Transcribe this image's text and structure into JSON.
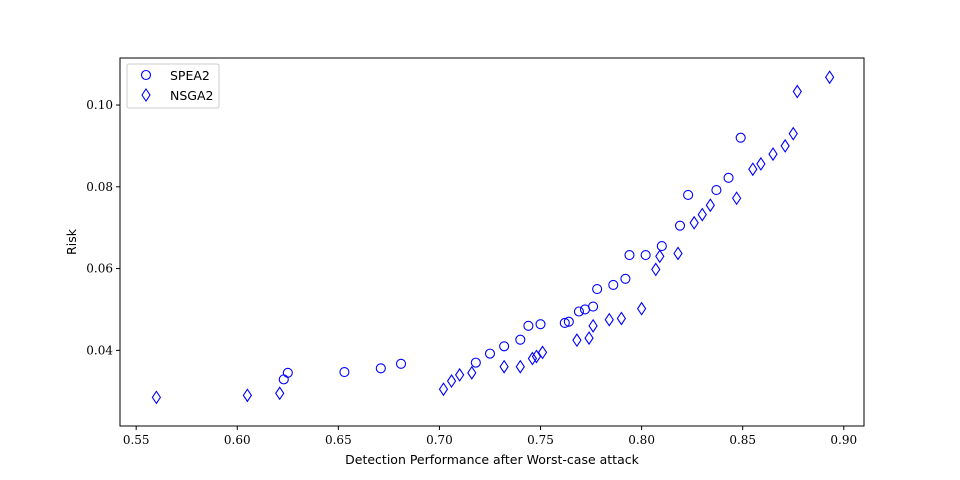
{
  "chart_data": {
    "type": "scatter",
    "title": "",
    "xlabel": "Detection Performance after Worst-case attack",
    "ylabel": "Risk",
    "xlim": [
      0.542,
      0.91
    ],
    "ylim": [
      0.0215,
      0.1115
    ],
    "xticks": [
      0.55,
      0.6,
      0.65,
      0.7,
      0.75,
      0.8,
      0.85,
      0.9
    ],
    "xtick_labels": [
      "0.55",
      "0.60",
      "0.65",
      "0.70",
      "0.75",
      "0.80",
      "0.85",
      "0.90"
    ],
    "yticks": [
      0.04,
      0.06,
      0.08,
      0.1
    ],
    "ytick_labels": [
      "0.04",
      "0.06",
      "0.08",
      "0.10"
    ],
    "grid": false,
    "legend_position": "top-left",
    "series": [
      {
        "name": "SPEA2",
        "marker": "circle",
        "color": "#0000ff",
        "points": [
          [
            0.623,
            0.0329
          ],
          [
            0.625,
            0.0345
          ],
          [
            0.653,
            0.0347
          ],
          [
            0.671,
            0.0356
          ],
          [
            0.681,
            0.0367
          ],
          [
            0.718,
            0.037
          ],
          [
            0.725,
            0.0392
          ],
          [
            0.732,
            0.041
          ],
          [
            0.74,
            0.0426
          ],
          [
            0.744,
            0.046
          ],
          [
            0.75,
            0.0464
          ],
          [
            0.762,
            0.0467
          ],
          [
            0.764,
            0.047
          ],
          [
            0.769,
            0.0495
          ],
          [
            0.772,
            0.05
          ],
          [
            0.776,
            0.0507
          ],
          [
            0.778,
            0.055
          ],
          [
            0.786,
            0.056
          ],
          [
            0.792,
            0.0575
          ],
          [
            0.794,
            0.0633
          ],
          [
            0.802,
            0.0633
          ],
          [
            0.81,
            0.0655
          ],
          [
            0.819,
            0.0705
          ],
          [
            0.823,
            0.078
          ],
          [
            0.837,
            0.0792
          ],
          [
            0.843,
            0.0822
          ],
          [
            0.849,
            0.092
          ]
        ]
      },
      {
        "name": "NSGA2",
        "marker": "diamond",
        "color": "#0000ff",
        "points": [
          [
            0.56,
            0.0285
          ],
          [
            0.605,
            0.029
          ],
          [
            0.621,
            0.0295
          ],
          [
            0.702,
            0.0305
          ],
          [
            0.706,
            0.0325
          ],
          [
            0.71,
            0.034
          ],
          [
            0.716,
            0.0345
          ],
          [
            0.732,
            0.036
          ],
          [
            0.74,
            0.036
          ],
          [
            0.746,
            0.038
          ],
          [
            0.748,
            0.0385
          ],
          [
            0.751,
            0.0395
          ],
          [
            0.768,
            0.0425
          ],
          [
            0.774,
            0.043
          ],
          [
            0.776,
            0.046
          ],
          [
            0.784,
            0.0475
          ],
          [
            0.79,
            0.0478
          ],
          [
            0.8,
            0.0502
          ],
          [
            0.807,
            0.0598
          ],
          [
            0.809,
            0.063
          ],
          [
            0.818,
            0.0637
          ],
          [
            0.826,
            0.0712
          ],
          [
            0.83,
            0.0732
          ],
          [
            0.834,
            0.0755
          ],
          [
            0.847,
            0.0772
          ],
          [
            0.855,
            0.0843
          ],
          [
            0.859,
            0.0856
          ],
          [
            0.865,
            0.088
          ],
          [
            0.871,
            0.09
          ],
          [
            0.875,
            0.093
          ],
          [
            0.877,
            0.1033
          ],
          [
            0.893,
            0.1068
          ]
        ]
      }
    ]
  }
}
